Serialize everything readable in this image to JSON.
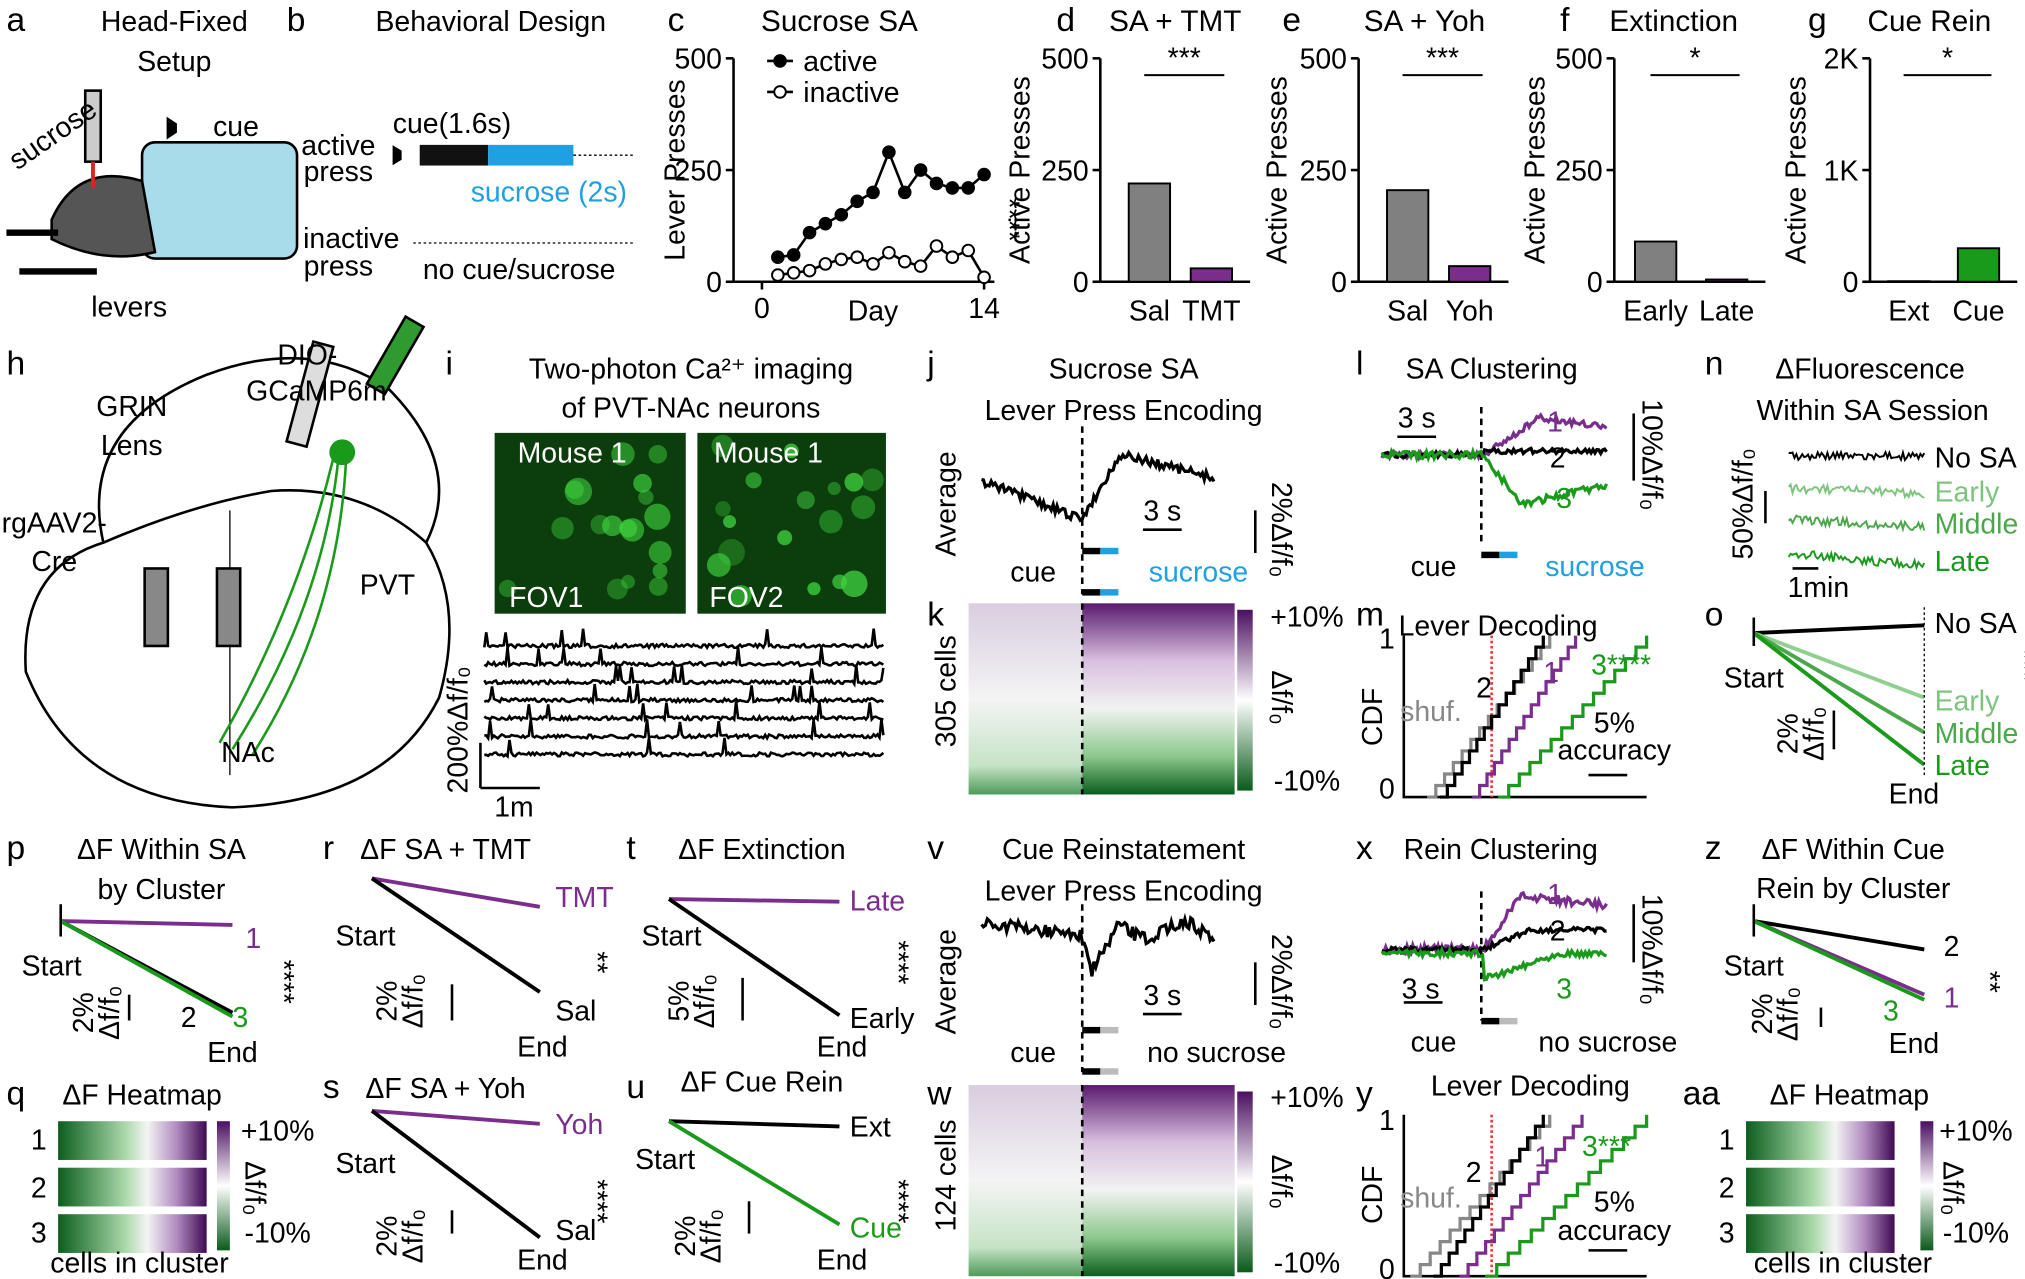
{
  "figure": {
    "a": [
      "a",
      "Head-Fixed",
      "Setup",
      "sucrose",
      "cue",
      "levers"
    ],
    "b": [
      "b",
      "Behavioral Design",
      "cue(1.6s)",
      "active",
      "press",
      "sucrose (2s)",
      "inactive",
      "press",
      "no cue/sucrose"
    ],
    "h": [
      "h",
      "DIO-",
      "GCaMP6m",
      "GRIN",
      "Lens",
      "rgAAV2-",
      "Cre",
      "PVT",
      "NAc"
    ],
    "i": [
      "i",
      "Two-photon Ca²⁺ imaging",
      "of PVT-NAc neurons",
      "Mouse 1",
      "Mouse 1",
      "FOV1",
      "FOV2",
      "200%Δf/f₀",
      "1m"
    ],
    "j": [
      "j",
      "Sucrose SA",
      "Lever Press Encoding",
      "Average",
      "2%Δf/f₀",
      "3 s",
      "cue",
      "sucrose"
    ],
    "k": [
      "k",
      "305 cells",
      "+10%",
      "Δf/f₀",
      "-10%"
    ],
    "l": [
      "l",
      "SA Clustering",
      "3 s",
      "1",
      "2",
      "3",
      "10%Δf/f₀",
      "cue",
      "sucrose"
    ],
    "m": [
      "m",
      "Lever Decoding",
      "CDF",
      "1",
      "0",
      "shuf.",
      "2",
      "1",
      "3****",
      "5%",
      "accuracy"
    ],
    "n": [
      "n",
      "ΔFluorescence",
      "Within SA Session",
      "50%Δf/f₀",
      "No SA",
      "Early",
      "Middle",
      "Late",
      "1min"
    ],
    "o": [
      "o",
      "No SA",
      "Start",
      "***",
      "Early",
      "Middle",
      "Late",
      "2%",
      "Δf/f₀",
      "End"
    ],
    "p": [
      "p",
      "ΔF Within SA",
      "by Cluster",
      "Start",
      "1",
      "****",
      "2%",
      "Δf/f₀",
      "2",
      "3",
      "End"
    ],
    "q": [
      "q",
      "ΔF Heatmap",
      "1",
      "2",
      "3",
      "+10%",
      "Δf/f₀",
      "-10%",
      "cells in cluster"
    ],
    "r": [
      "r",
      "ΔF SA + TMT",
      "Start",
      "TMT",
      "**",
      "2%",
      "Δf/f₀",
      "Sal",
      "End"
    ],
    "s": [
      "s",
      "ΔF SA + Yoh",
      "Yoh",
      "Start",
      "****",
      "2%",
      "Δf/f₀",
      "Sal",
      "End"
    ],
    "t": [
      "t",
      "ΔF Extinction",
      "Late",
      "Start",
      "****",
      "5%",
      "Δf/f₀",
      "Early",
      "End"
    ],
    "u": [
      "u",
      "ΔF Cue Rein",
      "Ext",
      "Start",
      "****",
      "2%",
      "Δf/f₀",
      "Cue",
      "End"
    ],
    "v": [
      "v",
      "Cue Reinstatement",
      "Lever Press Encoding",
      "Average",
      "2%Δf/f₀",
      "3 s",
      "cue",
      "no sucrose"
    ],
    "w": [
      "w",
      "124 cells",
      "+10%",
      "Δf/f₀",
      "-10%"
    ],
    "x": [
      "x",
      "Rein Clustering",
      "1",
      "2",
      "3",
      "10%Δf/f₀",
      "3 s",
      "cue",
      "no sucrose"
    ],
    "y": [
      "y",
      "Lever Decoding",
      "CDF",
      "1",
      "0",
      "shuf.",
      "2",
      "1",
      "3***",
      "5%",
      "accuracy"
    ],
    "z": [
      "z",
      "ΔF Within Cue",
      "Rein by Cluster",
      "Start",
      "2",
      "**",
      "2%",
      "Δf/f₀",
      "1",
      "3",
      "End"
    ],
    "aa": [
      "aa",
      "ΔF Heatmap",
      "1",
      "2",
      "3",
      "+10%",
      "Δf/f₀",
      "-10%",
      "cells in cluster"
    ]
  },
  "chart_data": [
    {
      "letter": "c",
      "type": "line",
      "title": "Sucrose SA",
      "xlabel": "Day",
      "ylabel": "Lever Presses",
      "x": [
        1,
        2,
        3,
        4,
        5,
        6,
        7,
        8,
        9,
        10,
        11,
        12,
        13,
        14
      ],
      "xlim": [
        0,
        14
      ],
      "xticks": [
        0,
        14
      ],
      "ylim": [
        0,
        500
      ],
      "yticks": [
        0,
        250,
        500
      ],
      "series": [
        {
          "name": "active",
          "color": "#000000",
          "values": [
            55,
            60,
            110,
            130,
            150,
            180,
            200,
            290,
            200,
            250,
            220,
            210,
            210,
            240
          ]
        },
        {
          "name": "inactive",
          "color": "#ffffff",
          "values": [
            15,
            20,
            25,
            40,
            50,
            55,
            40,
            65,
            45,
            35,
            80,
            55,
            70,
            10
          ]
        }
      ],
      "annotation": "****"
    },
    {
      "letter": "d",
      "type": "bar",
      "title": "SA + TMT",
      "ylabel": "Active Presses",
      "categories": [
        "Sal",
        "TMT"
      ],
      "values": [
        220,
        30
      ],
      "colors": [
        "#808080",
        "#7b2d8e"
      ],
      "ylim": [
        0,
        500
      ],
      "yticks": [
        0,
        250,
        500
      ],
      "annotation": "***"
    },
    {
      "letter": "e",
      "type": "bar",
      "title": "SA + Yoh",
      "ylabel": "Active Presses",
      "categories": [
        "Sal",
        "Yoh"
      ],
      "values": [
        205,
        35
      ],
      "colors": [
        "#808080",
        "#7b2d8e"
      ],
      "ylim": [
        0,
        500
      ],
      "yticks": [
        0,
        250,
        500
      ],
      "annotation": "***"
    },
    {
      "letter": "f",
      "type": "bar",
      "title": "Extinction",
      "ylabel": "Active Presses",
      "categories": [
        "Early",
        "Late"
      ],
      "values": [
        90,
        5
      ],
      "colors": [
        "#808080",
        "#7b2d8e"
      ],
      "ylim": [
        0,
        500
      ],
      "yticks": [
        0,
        250,
        500
      ],
      "annotation": "*"
    },
    {
      "letter": "g",
      "type": "bar",
      "title": "Cue Rein",
      "ylabel": "Active Presses",
      "categories": [
        "Ext",
        "Cue"
      ],
      "values": [
        5,
        300
      ],
      "colors": [
        "#808080",
        "#1a9a1a"
      ],
      "ylim": [
        0,
        2000
      ],
      "yticks": [
        0,
        {
          "value": 1000,
          "label": "1K"
        },
        {
          "value": 2000,
          "label": "2K"
        }
      ],
      "annotation": "*"
    }
  ]
}
